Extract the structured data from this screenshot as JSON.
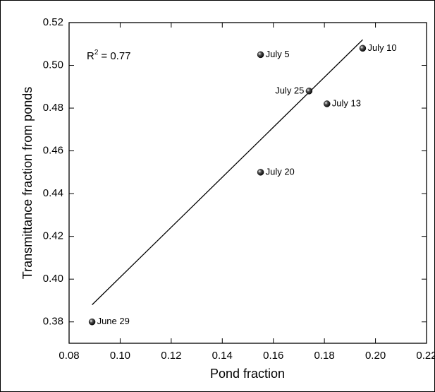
{
  "chart_data": {
    "type": "scatter",
    "x_label": "Pond fraction",
    "y_label": "Transmittance fraction from ponds",
    "annotation": [
      "R",
      "2",
      "= 0.77"
    ],
    "xlim": [
      0.08,
      0.22
    ],
    "xticks": [
      {
        "value": 0.08,
        "label": "0.08"
      },
      {
        "value": 0.1,
        "label": "0.10"
      },
      {
        "value": 0.12,
        "label": "0.12"
      },
      {
        "value": 0.14,
        "label": "0.14"
      },
      {
        "value": 0.16,
        "label": "0.16"
      },
      {
        "value": 0.18,
        "label": "0.18"
      },
      {
        "value": 0.2,
        "label": "0.20"
      },
      {
        "value": 0.22,
        "label": "0.22"
      }
    ],
    "ylim": [
      0.37,
      0.52
    ],
    "yticks": [
      {
        "value": 0.38,
        "label": "0.38"
      },
      {
        "value": 0.4,
        "label": "0.40"
      },
      {
        "value": 0.42,
        "label": "0.42"
      },
      {
        "value": 0.44,
        "label": "0.44"
      },
      {
        "value": 0.46,
        "label": "0.46"
      },
      {
        "value": 0.48,
        "label": "0.48"
      },
      {
        "value": 0.5,
        "label": "0.50"
      },
      {
        "value": 0.52,
        "label": "0.52"
      }
    ],
    "series": [
      {
        "color": "#000000",
        "labels": [
          "June 29",
          "July 5",
          "July 10",
          "July 25",
          "July 13",
          "July 20"
        ],
        "x": [
          0.089,
          0.155,
          0.195,
          0.174,
          0.181,
          0.155
        ],
        "values": [
          0.38,
          0.505,
          0.508,
          0.488,
          0.482,
          0.45
        ]
      }
    ],
    "fit": {
      "color": "#000000",
      "x": [
        0.089,
        0.195
      ],
      "values": [
        0.388,
        0.512
      ]
    }
  }
}
